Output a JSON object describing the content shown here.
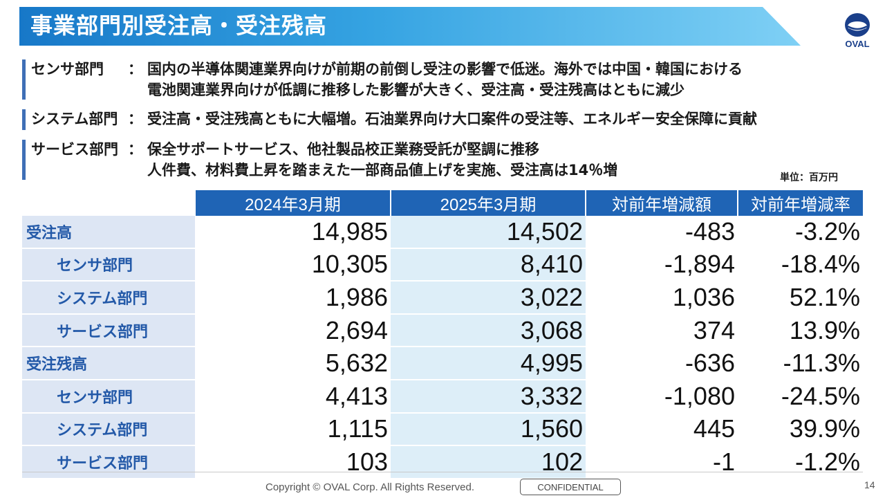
{
  "header": {
    "title": "事業部門別受注高・受注残高",
    "logo_text": "OVAL"
  },
  "notes": [
    {
      "dept": "センサ部門",
      "colon": "：",
      "lines": [
        "国内の半導体関連業界向けが前期の前倒し受注の影響で低迷。海外では中国・韓国における",
        "電池関連業界向けが低調に推移した影響が大きく、受注高・受注残高はともに減少"
      ]
    },
    {
      "dept": "システム部門",
      "colon": "：",
      "lines": [
        "受注高・受注残高ともに大幅増。石油業界向け大口案件の受注等、エネルギー安全保障に貢献"
      ]
    },
    {
      "dept": "サービス部門",
      "colon": "：",
      "lines": [
        "保全サポートサービス、他社製品校正業務受託が堅調に推移",
        "人件費、材料費上昇を踏まえた一部商品値上げを実施、受注高は14％増"
      ]
    }
  ],
  "unit_label": "単位：百万円",
  "table": {
    "headers": [
      "2024年3月期",
      "2025年3月期",
      "対前年増減額",
      "対前年増減率"
    ],
    "rows": [
      {
        "label": "受注高",
        "values": [
          "14,985",
          "14,502",
          "-483",
          "-3.2%"
        ]
      },
      {
        "label": "センサ部門",
        "values": [
          "10,305",
          "8,410",
          "-1,894",
          "-18.4%"
        ]
      },
      {
        "label": "システム部門",
        "values": [
          "1,986",
          "3,022",
          "1,036",
          "52.1%"
        ]
      },
      {
        "label": "サービス部門",
        "values": [
          "2,694",
          "3,068",
          "374",
          "13.9%"
        ]
      },
      {
        "label": "受注残高",
        "values": [
          "5,632",
          "4,995",
          "-636",
          "-11.3%"
        ]
      },
      {
        "label": "センサ部門",
        "values": [
          "4,413",
          "3,332",
          "-1,080",
          "-24.5%"
        ]
      },
      {
        "label": "システム部門",
        "values": [
          "1,115",
          "1,560",
          "445",
          "39.9%"
        ]
      },
      {
        "label": "サービス部門",
        "values": [
          "103",
          "102",
          "-1",
          "-1.2%"
        ]
      }
    ]
  },
  "footer": {
    "copyright": "Copyright © OVAL Corp. All Rights Reserved.",
    "confidential": "CONFIDENTIAL",
    "page_number": "14"
  },
  "colors": {
    "banner_start": "#1778c8",
    "banner_end": "#7fd0f5",
    "header_fill": "#1f64b5",
    "label_text": "#2359a8",
    "highlight_column": "#ddeef8"
  }
}
